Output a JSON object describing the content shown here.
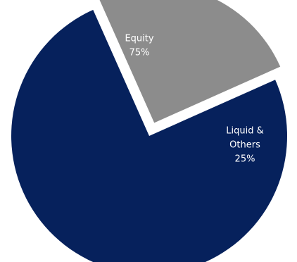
{
  "chart_data": {
    "type": "pie",
    "categories": [
      "Equity",
      "Liquid & Others"
    ],
    "values": [
      75,
      25
    ],
    "data_labels": [
      [
        "Equity",
        "75%"
      ],
      [
        "Liquid &",
        "Others",
        "25%"
      ]
    ],
    "colors": [
      "#06215c",
      "#8c8c8c"
    ],
    "exploded": "Liquid & Others"
  }
}
